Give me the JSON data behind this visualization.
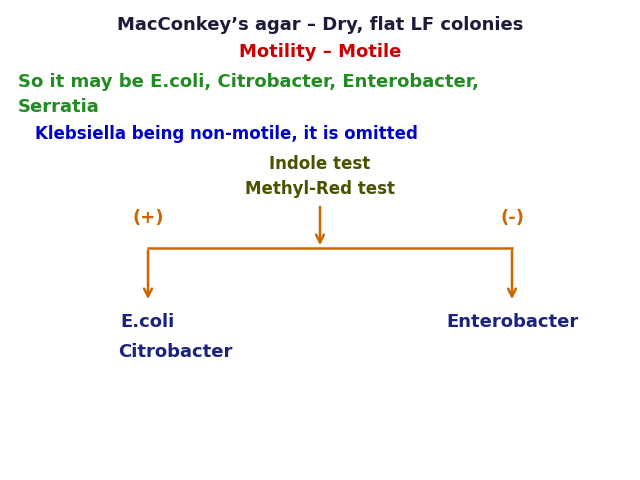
{
  "bg_color": "#ffffff",
  "title_line1": "MacConkey’s agar – Dry, flat LF colonies",
  "title_color": "#1c1c3a",
  "motility_line": "Motility – Motile",
  "motility_color": "#cc0000",
  "green_line1": "So it may be E.coli, Citrobacter, Enterobacter,",
  "green_line2": "Serratia",
  "green_color": "#228B22",
  "blue_line": "Klebsiella being non-motile, it is omitted",
  "blue_color": "#0000cc",
  "indole_line": "Indole test",
  "methyl_line": "Methyl-Red test",
  "olive_color": "#4a5200",
  "plus_label": "(+)",
  "minus_label": "(-)",
  "arrow_color": "#cc6600",
  "ecoli_label": "E.coli",
  "citro_label": "Citrobacter",
  "entero_label": "Enterobacter",
  "organism_color": "#1a237e",
  "font_size_title": 13,
  "font_size_motility": 13,
  "font_size_green": 13,
  "font_size_blue": 12,
  "font_size_test": 12,
  "font_size_pm": 13,
  "font_size_organism": 13
}
